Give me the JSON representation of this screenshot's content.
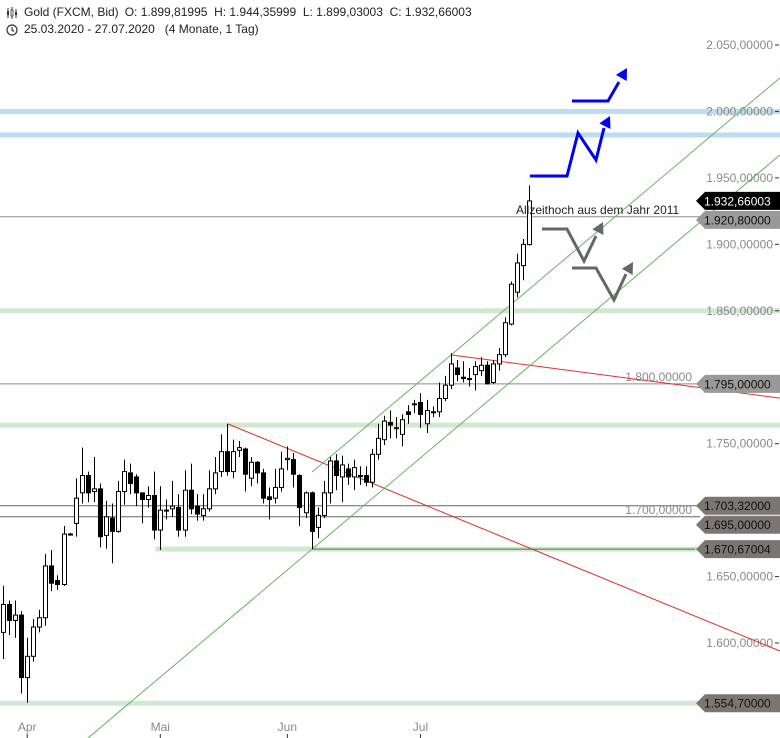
{
  "header": {
    "instrument": "Gold (FXCM, Bid)",
    "ohlc": "O: 1.899,81995  H: 1.944,35999  L: 1.899,03003  C: 1.932,66003",
    "range": "25.03.2020 - 27.07.2020   (4 Monate, 1 Tag)",
    "chart_icon": "candlestick-icon",
    "clock_icon": "clock-icon"
  },
  "chart_data": {
    "type": "candlestick",
    "title": "Gold (FXCM, Bid)",
    "ylim": [
      1520,
      2080
    ],
    "y_ticks": [
      "2.050,00000",
      "2.000,00000",
      "1.950,00000",
      "1.900,00000",
      "1.850,00000",
      "1.800,00000",
      "1.750,00000",
      "1.700,00000",
      "1.650,00000",
      "1.600,00000"
    ],
    "y_tick_values": [
      2050,
      2000,
      1950,
      1900,
      1850,
      1800,
      1750,
      1700,
      1650,
      1600
    ],
    "x_ticks": [
      {
        "label": "Apr",
        "bar": 4
      },
      {
        "label": "Mai",
        "bar": 26
      },
      {
        "label": "Jun",
        "bar": 47
      },
      {
        "label": "Jul",
        "bar": 69
      }
    ],
    "candles": {
      "open": [
        1608,
        1629,
        1617,
        1621,
        1574,
        1590,
        1612,
        1619,
        1658,
        1647,
        1644,
        1682,
        1690,
        1713,
        1726,
        1714,
        1716,
        1681,
        1694,
        1684,
        1714,
        1728,
        1725,
        1713,
        1708,
        1711,
        1685,
        1700,
        1701,
        1702,
        1685,
        1715,
        1703,
        1696,
        1701,
        1716,
        1729,
        1744,
        1729,
        1745,
        1746,
        1724,
        1736,
        1728,
        1710,
        1709,
        1717,
        1738,
        1738,
        1726,
        1698,
        1713,
        1687,
        1696,
        1713,
        1737,
        1725,
        1731,
        1725,
        1726,
        1726,
        1721,
        1742,
        1753,
        1766,
        1762,
        1757,
        1774,
        1780,
        1781,
        1765,
        1774,
        1774,
        1784,
        1794,
        1807,
        1800,
        1799,
        1802,
        1805,
        1809,
        1796,
        1810,
        1817,
        1840,
        1864,
        1884,
        1899.82
      ],
      "high": [
        1643,
        1632,
        1632,
        1624,
        1604,
        1618,
        1625,
        1667,
        1670,
        1651,
        1688,
        1683,
        1724,
        1747,
        1729,
        1740,
        1720,
        1707,
        1705,
        1722,
        1738,
        1735,
        1727,
        1713,
        1718,
        1729,
        1718,
        1708,
        1722,
        1712,
        1730,
        1735,
        1712,
        1712,
        1730,
        1740,
        1757,
        1765,
        1753,
        1752,
        1747,
        1740,
        1737,
        1731,
        1717,
        1731,
        1744,
        1748,
        1743,
        1727,
        1714,
        1714,
        1702,
        1722,
        1740,
        1742,
        1741,
        1735,
        1738,
        1733,
        1733,
        1746,
        1765,
        1771,
        1775,
        1770,
        1772,
        1779,
        1783,
        1788,
        1783,
        1778,
        1796,
        1801,
        1818,
        1813,
        1812,
        1807,
        1812,
        1815,
        1812,
        1813,
        1822,
        1845,
        1872,
        1893,
        1904,
        1944.36
      ],
      "low": [
        1588,
        1606,
        1604,
        1562,
        1555,
        1586,
        1608,
        1613,
        1639,
        1640,
        1643,
        1681,
        1680,
        1705,
        1706,
        1706,
        1672,
        1671,
        1660,
        1683,
        1704,
        1712,
        1703,
        1690,
        1702,
        1678,
        1670,
        1693,
        1695,
        1680,
        1680,
        1697,
        1692,
        1692,
        1699,
        1712,
        1725,
        1726,
        1724,
        1740,
        1714,
        1718,
        1720,
        1705,
        1693,
        1705,
        1714,
        1730,
        1717,
        1688,
        1694,
        1670.67,
        1679,
        1694,
        1705,
        1715,
        1706,
        1719,
        1715,
        1719,
        1718,
        1717,
        1738,
        1749,
        1754,
        1754,
        1748,
        1765,
        1773,
        1762,
        1758,
        1770,
        1770,
        1782,
        1791,
        1797,
        1796,
        1793,
        1790,
        1801,
        1795,
        1795,
        1805,
        1815,
        1839,
        1860,
        1873,
        1899.03
      ],
      "close": [
        1629,
        1617,
        1621,
        1574,
        1590,
        1612,
        1619,
        1658,
        1645,
        1644,
        1682,
        1682,
        1709,
        1726,
        1713,
        1716,
        1680,
        1695,
        1684,
        1714,
        1729,
        1720,
        1713,
        1708,
        1711,
        1685,
        1700,
        1700,
        1703,
        1685,
        1715,
        1701,
        1697,
        1701,
        1716,
        1728,
        1744,
        1729,
        1744,
        1747,
        1727,
        1736,
        1728,
        1709,
        1708,
        1717,
        1731,
        1739,
        1727,
        1702,
        1713,
        1684,
        1696,
        1713,
        1737,
        1726,
        1734,
        1725,
        1732,
        1726,
        1721,
        1742,
        1754,
        1767,
        1764,
        1762,
        1768,
        1772,
        1780,
        1772,
        1775,
        1774,
        1784,
        1794,
        1810,
        1802,
        1799,
        1799,
        1808,
        1809,
        1795,
        1810,
        1817,
        1841,
        1870,
        1886,
        1900,
        1932.66
      ]
    },
    "horizontal_levels": [
      {
        "price": 2000,
        "style": "band",
        "color": "#bcdcf4"
      },
      {
        "price": 1982.3,
        "style": "band",
        "color": "#bcdcf4"
      },
      {
        "price": 1850,
        "style": "band",
        "color": "#cfe8cf"
      },
      {
        "price": 1764,
        "style": "band",
        "color": "#cfe8cf"
      },
      {
        "price": 1670.67004,
        "style": "band",
        "color": "#cfe8cf",
        "from_bar": 25.2
      },
      {
        "price": 1554.7,
        "style": "band",
        "color": "#cfe8cf"
      },
      {
        "price": 1920.8,
        "style": "line",
        "color": "#8a8a8a"
      },
      {
        "price": 1795,
        "style": "line",
        "color": "#8a8a8a"
      },
      {
        "price": 1703.32,
        "style": "line",
        "color": "#666666"
      },
      {
        "price": 1695,
        "style": "line",
        "color": "#666666"
      }
    ],
    "price_labels": [
      {
        "text": "1.932,66003",
        "price": 1932.66003,
        "color": "#000000"
      },
      {
        "text": "1.920,80000",
        "price": 1920.8,
        "color": "#999999"
      },
      {
        "text": "1.795,00000",
        "price": 1795,
        "color": "#999999"
      },
      {
        "text": "1.703,32000",
        "price": 1703.32,
        "color": "#7a7672"
      },
      {
        "text": "1.695,00000",
        "price": 1695,
        "color": "#7a7672"
      },
      {
        "text": "1.670,67004",
        "price": 1670.67004,
        "color": "#7a7672"
      },
      {
        "text": "1.554,70000",
        "price": 1554.7,
        "color": "#7a7672"
      }
    ],
    "trend_lines": [
      {
        "from": {
          "bar": 37.2,
          "price": 1764.8
        },
        "to": {
          "bar": 128.4,
          "price": 1594
        },
        "color": "#e03030"
      },
      {
        "from": {
          "bar": 74.2,
          "price": 1816.7
        },
        "to": {
          "bar": 128.4,
          "price": 1784.3
        },
        "color": "#e03030"
      },
      {
        "from": {
          "bar": 14.05,
          "price": 1528.5
        },
        "to": {
          "bar": 128.4,
          "price": 1967.2
        },
        "color": "#5cb85c"
      },
      {
        "from": {
          "bar": 51.1,
          "price": 1728.7
        },
        "to": {
          "bar": 128.4,
          "price": 2025.2
        },
        "color": "#5cb85c"
      },
      {
        "from": {
          "bar": 51.1,
          "price": 1670.67
        },
        "to": {
          "bar": 114.4,
          "price": 1670.67
        },
        "color": "#4a7a4a"
      }
    ],
    "annotation": "Allzeithoch aus dem Jahr 2011",
    "arrow_colors": {
      "bullish": "#0000ff",
      "neutral": "#666666"
    },
    "up_candle_color": "#ffffff",
    "down_candle_color": "#000000"
  }
}
